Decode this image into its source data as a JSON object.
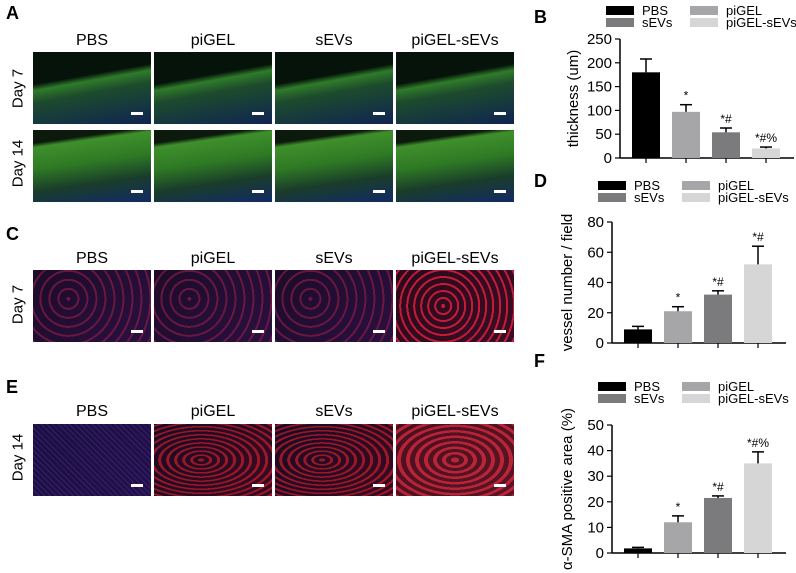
{
  "panel_labels": {
    "A": "A",
    "B": "B",
    "C": "C",
    "D": "D",
    "E": "E",
    "F": "F"
  },
  "micrographs": {
    "columns": [
      "PBS",
      "piGEL",
      "sEVs",
      "piGEL-sEVs"
    ],
    "section_A_rows": [
      "Day 7",
      "Day 14"
    ],
    "section_C_rows": [
      "Day 7"
    ],
    "section_E_rows": [
      "Day 14"
    ]
  },
  "colors": {
    "PBS": "#000000",
    "piGEL": "#a6a6a8",
    "sEVs": "#7b7b7d",
    "piGEL-sEVs": "#d6d6d6"
  },
  "chart_data": [
    {
      "id": "B",
      "type": "bar",
      "categories": [
        "PBS",
        "piGEL",
        "sEVs",
        "piGEL-sEVs"
      ],
      "values": [
        180,
        97,
        54,
        20
      ],
      "errors": [
        28,
        15,
        9,
        3
      ],
      "annotations": [
        "",
        "*",
        "*#",
        "*#%"
      ],
      "ylabel": "thickness (um)",
      "ylim": [
        0,
        250
      ],
      "yticks": [
        "0",
        "50",
        "100",
        "150",
        "200",
        "250"
      ],
      "legend": [
        "PBS",
        "piGEL",
        "sEVs",
        "piGEL-sEVs"
      ],
      "legend_position": "top"
    },
    {
      "id": "D",
      "type": "bar",
      "categories": [
        "PBS",
        "piGEL",
        "sEVs",
        "piGEL-sEVs"
      ],
      "values": [
        9,
        21,
        32,
        52
      ],
      "errors": [
        2,
        3,
        2.5,
        12
      ],
      "annotations": [
        "",
        "*",
        "*#",
        "*#"
      ],
      "ylabel": "vessel number / field",
      "ylim": [
        0,
        80
      ],
      "yticks": [
        "0",
        "20",
        "40",
        "60",
        "80"
      ],
      "legend": [
        "PBS",
        "piGEL",
        "sEVs",
        "piGEL-sEVs"
      ],
      "legend_position": "top"
    },
    {
      "id": "F",
      "type": "bar",
      "categories": [
        "PBS",
        "piGEL",
        "sEVs",
        "piGEL-sEVs"
      ],
      "values": [
        1.8,
        12,
        21.5,
        35
      ],
      "errors": [
        0.4,
        2.5,
        0.8,
        4.5
      ],
      "annotations": [
        "",
        "*",
        "*#",
        "*#%"
      ],
      "ylabel": "α-SMA positive area (%)",
      "ylim": [
        0,
        50
      ],
      "yticks": [
        "0",
        "10",
        "20",
        "30",
        "40",
        "50"
      ],
      "legend": [
        "PBS",
        "piGEL",
        "sEVs",
        "piGEL-sEVs"
      ],
      "legend_position": "top"
    }
  ]
}
